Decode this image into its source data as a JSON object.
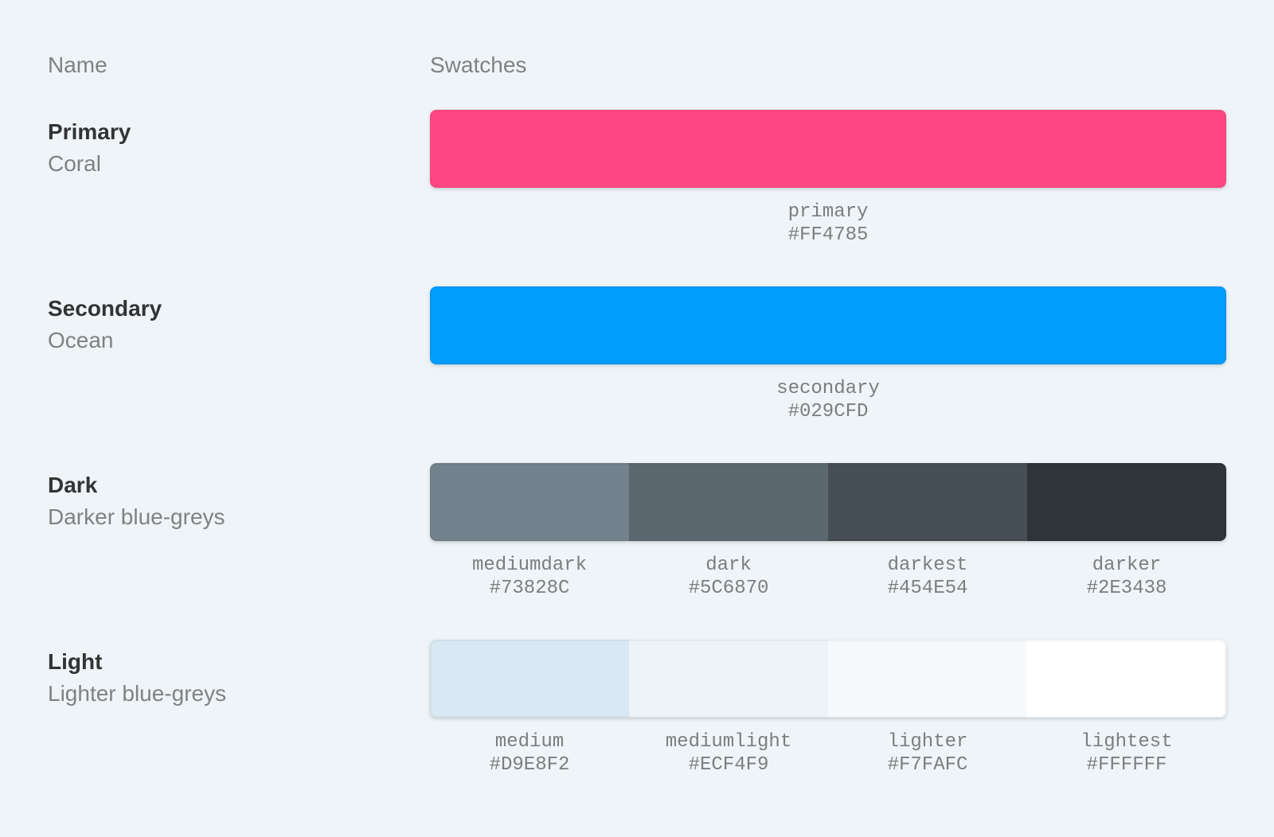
{
  "page": {
    "background": "#EFF4F8"
  },
  "header": {
    "name_label": "Name",
    "swatches_label": "Swatches"
  },
  "palette": {
    "rows": [
      {
        "title": "Primary",
        "subtitle": "Coral",
        "swatches": [
          {
            "name": "primary",
            "hex": "#FF4785"
          }
        ]
      },
      {
        "title": "Secondary",
        "subtitle": "Ocean",
        "swatches": [
          {
            "name": "secondary",
            "hex": "#029CFD"
          }
        ]
      },
      {
        "title": "Dark",
        "subtitle": "Darker blue-greys",
        "swatches": [
          {
            "name": "mediumdark",
            "hex": "#73828C"
          },
          {
            "name": "dark",
            "hex": "#5C6870"
          },
          {
            "name": "darkest",
            "hex": "#454E54"
          },
          {
            "name": "darker",
            "hex": "#2E3438"
          }
        ]
      },
      {
        "title": "Light",
        "subtitle": "Lighter blue-greys",
        "swatches": [
          {
            "name": "medium",
            "hex": "#D9E8F2"
          },
          {
            "name": "mediumlight",
            "hex": "#ECF4F9"
          },
          {
            "name": "lighter",
            "hex": "#F7FAFC"
          },
          {
            "name": "lightest",
            "hex": "#FFFFFF"
          }
        ]
      }
    ]
  }
}
